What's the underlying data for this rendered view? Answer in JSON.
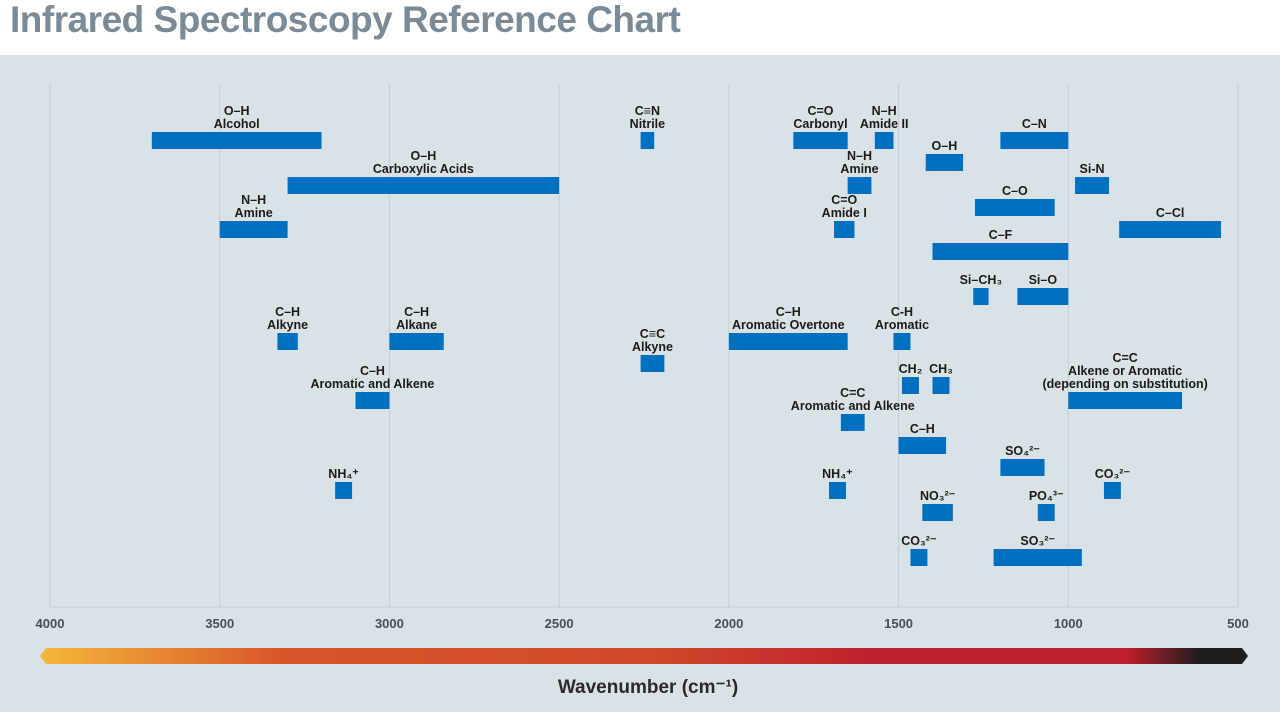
{
  "title": "Infrared Spectroscopy Reference Chart",
  "chart_data": {
    "type": "range-bar",
    "title": "Infrared Spectroscopy Reference Chart",
    "xlabel": "Wavenumber (cm⁻¹)",
    "xlim": [
      4000,
      500
    ],
    "x_reversed": true,
    "xticks": [
      4000,
      3500,
      3000,
      2500,
      2000,
      1500,
      1000,
      500
    ],
    "grid": "vertical",
    "bar_color": "#0070c0",
    "colorbar": {
      "from": "#f5b93a",
      "mid": "#d8552a",
      "red": "#be1e2d",
      "to": "#1e1e1e"
    },
    "bands": [
      {
        "label": [
          "O–H",
          "Alcohol"
        ],
        "range": [
          3700,
          3200
        ]
      },
      {
        "label": [
          "O–H",
          "Carboxylic Acids"
        ],
        "range": [
          3300,
          2500
        ]
      },
      {
        "label": [
          "N–H",
          "Amine"
        ],
        "range": [
          3500,
          3300
        ]
      },
      {
        "label": [
          "C≡N",
          "Nitrile"
        ],
        "range": [
          2260,
          2220
        ]
      },
      {
        "label": [
          "C=O",
          "Carbonyl"
        ],
        "range": [
          1810,
          1650
        ]
      },
      {
        "label": [
          "N–H",
          "Amide II"
        ],
        "range": [
          1570,
          1515
        ]
      },
      {
        "label": [
          "O–H"
        ],
        "range": [
          1420,
          1310
        ]
      },
      {
        "label": [
          "C–N"
        ],
        "range": [
          1200,
          1000
        ]
      },
      {
        "label": [
          "N–H",
          "Amine"
        ],
        "range": [
          1650,
          1580
        ]
      },
      {
        "label": [
          "Si-N"
        ],
        "range": [
          980,
          880
        ]
      },
      {
        "label": [
          "C–O"
        ],
        "range": [
          1275,
          1040
        ]
      },
      {
        "label": [
          "C=O",
          "Amide I"
        ],
        "range": [
          1690,
          1630
        ]
      },
      {
        "label": [
          "C–Cl"
        ],
        "range": [
          850,
          550
        ]
      },
      {
        "label": [
          "C–F"
        ],
        "range": [
          1400,
          1000
        ]
      },
      {
        "label": [
          "Si–CH₃"
        ],
        "range": [
          1280,
          1235
        ]
      },
      {
        "label": [
          "Si–O"
        ],
        "range": [
          1150,
          1000
        ]
      },
      {
        "label": [
          "C–H",
          "Alkyne"
        ],
        "range": [
          3330,
          3270
        ]
      },
      {
        "label": [
          "C–H",
          "Alkane"
        ],
        "range": [
          3000,
          2840
        ]
      },
      {
        "label": [
          "C≡C",
          "Alkyne"
        ],
        "range": [
          2260,
          2190
        ]
      },
      {
        "label": [
          "C–H",
          "Aromatic Overtone"
        ],
        "range": [
          2000,
          1650
        ]
      },
      {
        "label": [
          "C-H",
          "Aromatic"
        ],
        "range": [
          1515,
          1465
        ]
      },
      {
        "label": [
          "C–H",
          "Aromatic and Alkene"
        ],
        "range": [
          3100,
          3000
        ]
      },
      {
        "label": [
          "CH₂"
        ],
        "range": [
          1490,
          1440
        ]
      },
      {
        "label": [
          "CH₃"
        ],
        "range": [
          1400,
          1350
        ]
      },
      {
        "label": [
          "C=C",
          "Alkene or Aromatic",
          "(depending on substitution)"
        ],
        "range": [
          1000,
          665
        ]
      },
      {
        "label": [
          "C=C",
          "Aromatic and Alkene"
        ],
        "range": [
          1670,
          1600
        ]
      },
      {
        "label": [
          "C–H"
        ],
        "range": [
          1500,
          1360
        ]
      },
      {
        "label": [
          "SO₄²⁻"
        ],
        "range": [
          1200,
          1070
        ]
      },
      {
        "label": [
          "NH₄⁺"
        ],
        "range": [
          3160,
          3110
        ]
      },
      {
        "label": [
          "NH₄⁺"
        ],
        "range": [
          1705,
          1655
        ]
      },
      {
        "label": [
          "CO₃²⁻"
        ],
        "range": [
          895,
          845
        ]
      },
      {
        "label": [
          "NO₃²⁻"
        ],
        "range": [
          1430,
          1340
        ]
      },
      {
        "label": [
          "PO₄³⁻"
        ],
        "range": [
          1090,
          1040
        ]
      },
      {
        "label": [
          "CO₃²⁻"
        ],
        "range": [
          1465,
          1415
        ]
      },
      {
        "label": [
          "SO₃²⁻"
        ],
        "range": [
          1220,
          960
        ]
      }
    ]
  }
}
